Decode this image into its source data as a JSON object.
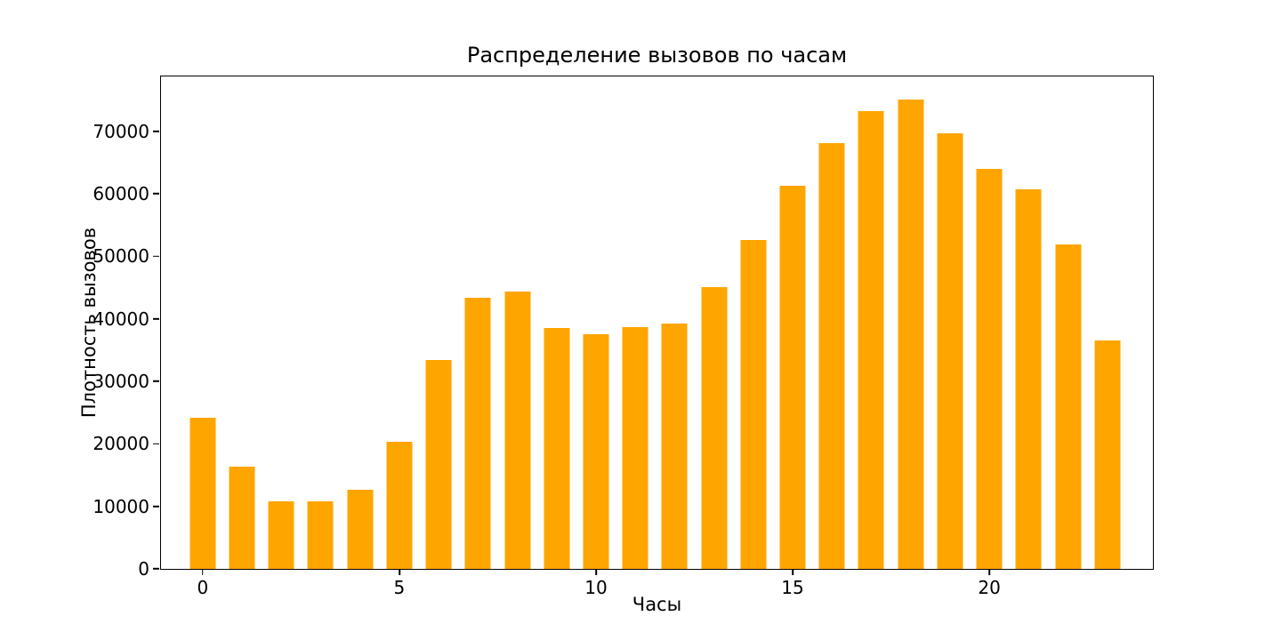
{
  "chart_data": {
    "type": "bar",
    "title": "Распределение вызовов по часам",
    "xlabel": "Часы",
    "ylabel": "Плотность вызовов",
    "x": [
      0,
      1,
      2,
      3,
      4,
      5,
      6,
      7,
      8,
      9,
      10,
      11,
      12,
      13,
      14,
      15,
      16,
      17,
      18,
      19,
      20,
      21,
      22,
      23
    ],
    "values": [
      24200,
      16300,
      10800,
      10800,
      12600,
      20300,
      33400,
      43300,
      44400,
      38500,
      37600,
      38700,
      39200,
      45000,
      52600,
      61200,
      68100,
      73200,
      75000,
      69600,
      63900,
      60700,
      51900,
      36600
    ],
    "xticks": [
      0,
      5,
      10,
      15,
      20
    ],
    "yticks": [
      0,
      10000,
      20000,
      30000,
      40000,
      50000,
      60000,
      70000
    ],
    "xlim": [
      -1.06,
      24.16
    ],
    "ylim": [
      0,
      78750
    ],
    "bar_color": "#FFA500",
    "grid": false,
    "legend": null
  }
}
